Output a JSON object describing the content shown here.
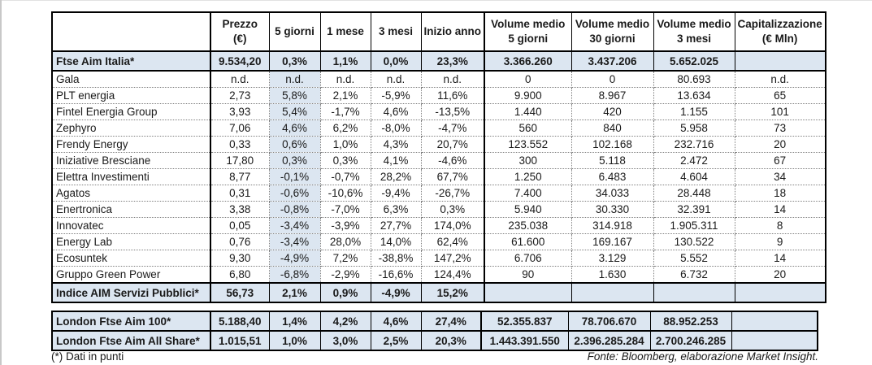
{
  "colors": {
    "highlight_blue": "#dce6f1",
    "border_black": "#000000",
    "dotted_gray": "#808080",
    "text": "#1a1a1a"
  },
  "main_table": {
    "headers": [
      {
        "line1": "",
        "line2": ""
      },
      {
        "line1": "Prezzo",
        "line2": "(€)"
      },
      {
        "line1": "5 giorni",
        "line2": ""
      },
      {
        "line1": "1 mese",
        "line2": ""
      },
      {
        "line1": "3 mesi",
        "line2": ""
      },
      {
        "line1": "Inizio anno",
        "line2": ""
      },
      {
        "line1": "Volume medio",
        "line2": "5 giorni"
      },
      {
        "line1": "Volume medio",
        "line2": "30 giorni"
      },
      {
        "line1": "Volume medio",
        "line2": "3 mesi"
      },
      {
        "line1": "Capitalizzazione",
        "line2": "(€ Mln)"
      }
    ],
    "rows": [
      {
        "name": "Ftse Aim Italia*",
        "type": "index",
        "cells": [
          "9.534,20",
          "0,3%",
          "1,1%",
          "0,0%",
          "23,3%",
          "3.366.260",
          "3.437.206",
          "5.652.025",
          ""
        ]
      },
      {
        "name": "Gala",
        "type": "stock",
        "cells": [
          "n.d.",
          "n.d.",
          "n.d.",
          "n.d.",
          "n.d.",
          "0",
          "0",
          "80.693",
          "n.d."
        ]
      },
      {
        "name": "PLT energia",
        "type": "stock",
        "cells": [
          "2,73",
          "5,8%",
          "2,1%",
          "-5,9%",
          "11,6%",
          "9.900",
          "8.967",
          "13.634",
          "65"
        ]
      },
      {
        "name": "Fintel Energia Group",
        "type": "stock",
        "cells": [
          "3,93",
          "5,4%",
          "-1,7%",
          "4,6%",
          "-13,5%",
          "1.440",
          "420",
          "1.155",
          "101"
        ]
      },
      {
        "name": "Zephyro",
        "type": "stock",
        "cells": [
          "7,06",
          "4,6%",
          "6,2%",
          "-8,0%",
          "-4,7%",
          "560",
          "840",
          "5.958",
          "73"
        ]
      },
      {
        "name": "Frendy Energy",
        "type": "stock",
        "cells": [
          "0,33",
          "0,6%",
          "1,0%",
          "4,3%",
          "20,7%",
          "123.552",
          "102.168",
          "232.716",
          "20"
        ]
      },
      {
        "name": "Iniziative Bresciane",
        "type": "stock",
        "cells": [
          "17,80",
          "0,3%",
          "0,3%",
          "4,1%",
          "-4,6%",
          "300",
          "5.118",
          "2.472",
          "67"
        ]
      },
      {
        "name": "Elettra Investimenti",
        "type": "stock",
        "cells": [
          "8,77",
          "-0,1%",
          "-0,7%",
          "28,2%",
          "67,7%",
          "1.250",
          "6.483",
          "4.604",
          "34"
        ]
      },
      {
        "name": "Agatos",
        "type": "stock",
        "cells": [
          "0,31",
          "-0,6%",
          "-10,6%",
          "-9,4%",
          "-26,7%",
          "7.400",
          "34.033",
          "28.448",
          "18"
        ]
      },
      {
        "name": "Enertronica",
        "type": "stock",
        "cells": [
          "3,38",
          "-0,8%",
          "-7,0%",
          "6,3%",
          "0,3%",
          "5.940",
          "30.330",
          "32.391",
          "14"
        ]
      },
      {
        "name": "Innovatec",
        "type": "stock",
        "cells": [
          "0,05",
          "-3,4%",
          "-3,9%",
          "27,7%",
          "174,0%",
          "235.038",
          "314.918",
          "1.905.311",
          "8"
        ]
      },
      {
        "name": "Energy Lab",
        "type": "stock",
        "cells": [
          "0,76",
          "-3,4%",
          "28,0%",
          "14,0%",
          "62,4%",
          "61.600",
          "169.167",
          "130.522",
          "9"
        ]
      },
      {
        "name": "Ecosuntek",
        "type": "stock",
        "cells": [
          "9,30",
          "-4,9%",
          "7,2%",
          "-38,8%",
          "147,2%",
          "6.706",
          "3.129",
          "5.552",
          "14"
        ]
      },
      {
        "name": "Gruppo Green Power",
        "type": "stock",
        "cells": [
          "6,80",
          "-6,8%",
          "-2,9%",
          "-16,6%",
          "124,4%",
          "90",
          "1.630",
          "6.732",
          "20"
        ]
      },
      {
        "name": "Indice AIM Servizi Pubblici*",
        "type": "index",
        "cells": [
          "56,73",
          "2,1%",
          "0,9%",
          "-4,9%",
          "15,2%",
          "",
          "",
          "",
          ""
        ]
      }
    ]
  },
  "london_table": {
    "rows": [
      {
        "name": "London Ftse Aim 100*",
        "type": "index",
        "cells": [
          "5.188,40",
          "1,4%",
          "4,2%",
          "4,6%",
          "27,4%",
          "52.355.837",
          "78.706.670",
          "88.952.253",
          ""
        ]
      },
      {
        "name": "London Ftse Aim All Share*",
        "type": "index",
        "cells": [
          "1.015,51",
          "1,0%",
          "3,0%",
          "2,5%",
          "20,3%",
          "1.443.391.550",
          "2.396.285.284",
          "2.700.246.285",
          ""
        ]
      }
    ]
  },
  "footer": {
    "note": "(*) Dati in punti",
    "source": "Fonte: Bloomberg, elaborazione Market Insight."
  }
}
